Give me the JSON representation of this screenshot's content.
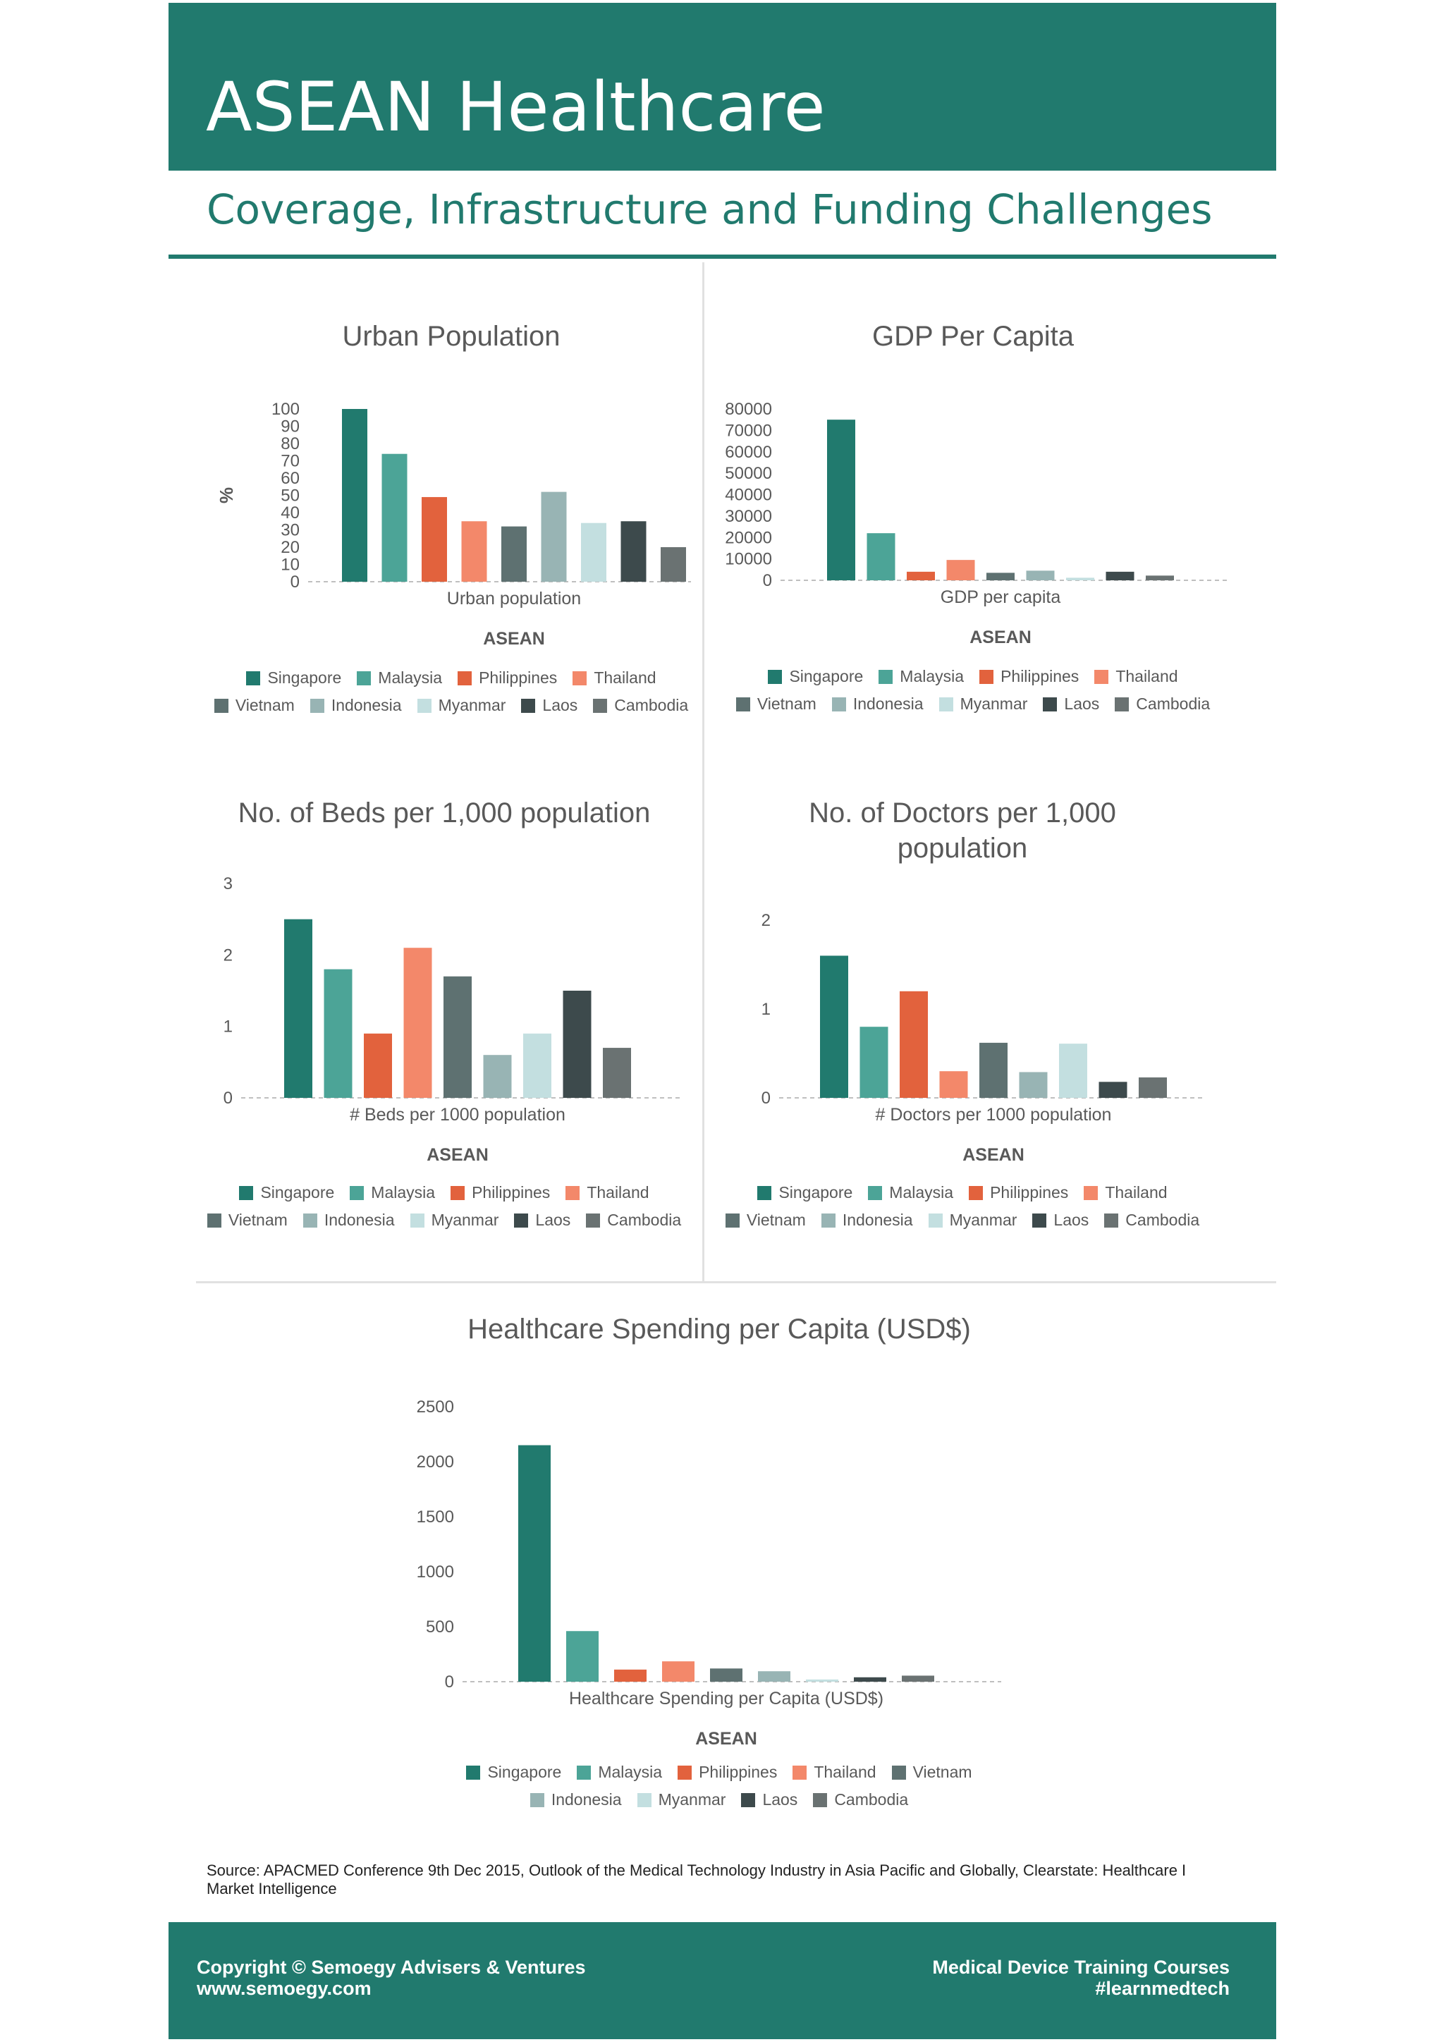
{
  "header": {
    "title": "ASEAN Healthcare",
    "subtitle": "Coverage, Infrastructure and Funding Challenges"
  },
  "colors": {
    "brand": "#217a6e",
    "series": {
      "Singapore": "#217a6e",
      "Malaysia": "#4ca497",
      "Philippines": "#e2623d",
      "Thailand": "#f3886a",
      "Vietnam": "#5e7171",
      "Indonesia": "#98b4b4",
      "Myanmar": "#c3dfe0",
      "Laos": "#3d4a4c",
      "Cambodia": "#6a7272"
    }
  },
  "chart_data": [
    {
      "type": "bar",
      "title": "Urban Population",
      "ylabel": "%",
      "categories": [
        "Urban population"
      ],
      "group_label": "ASEAN",
      "ylim": [
        0,
        100
      ],
      "yticks": [
        "0",
        "10",
        "20",
        "30",
        "40",
        "50",
        "60",
        "70",
        "80",
        "90",
        "100"
      ],
      "series": [
        {
          "name": "Singapore",
          "values": [
            100
          ]
        },
        {
          "name": "Malaysia",
          "values": [
            74
          ]
        },
        {
          "name": "Philippines",
          "values": [
            49
          ]
        },
        {
          "name": "Thailand",
          "values": [
            35
          ]
        },
        {
          "name": "Vietnam",
          "values": [
            32
          ]
        },
        {
          "name": "Indonesia",
          "values": [
            52
          ]
        },
        {
          "name": "Myanmar",
          "values": [
            34
          ]
        },
        {
          "name": "Laos",
          "values": [
            35
          ]
        },
        {
          "name": "Cambodia",
          "values": [
            20
          ]
        }
      ],
      "legend": {
        "placement": "bottom",
        "rows": [
          [
            "Singapore",
            "Malaysia",
            "Philippines",
            "Thailand"
          ],
          [
            "Vietnam",
            "Indonesia",
            "Myanmar",
            "Laos",
            "Cambodia"
          ]
        ]
      }
    },
    {
      "type": "bar",
      "title": "GDP Per Capita",
      "categories": [
        "GDP per capita"
      ],
      "group_label": "ASEAN",
      "ylim": [
        0,
        80000
      ],
      "yticks": [
        "0",
        "10000",
        "20000",
        "30000",
        "40000",
        "50000",
        "60000",
        "70000",
        "80000"
      ],
      "series": [
        {
          "name": "Singapore",
          "values": [
            75000
          ]
        },
        {
          "name": "Malaysia",
          "values": [
            22000
          ]
        },
        {
          "name": "Philippines",
          "values": [
            4000
          ]
        },
        {
          "name": "Thailand",
          "values": [
            9500
          ]
        },
        {
          "name": "Vietnam",
          "values": [
            3500
          ]
        },
        {
          "name": "Indonesia",
          "values": [
            4500
          ]
        },
        {
          "name": "Myanmar",
          "values": [
            1200
          ]
        },
        {
          "name": "Laos",
          "values": [
            4000
          ]
        },
        {
          "name": "Cambodia",
          "values": [
            2200
          ]
        }
      ],
      "legend": {
        "placement": "bottom",
        "rows": [
          [
            "Singapore",
            "Malaysia",
            "Philippines",
            "Thailand"
          ],
          [
            "Vietnam",
            "Indonesia",
            "Myanmar",
            "Laos",
            "Cambodia"
          ]
        ]
      }
    },
    {
      "type": "bar",
      "title": "No. of Beds per 1,000 population",
      "categories": [
        "# Beds per 1000 population"
      ],
      "group_label": "ASEAN",
      "ylim": [
        0,
        3
      ],
      "yticks": [
        "0",
        "1",
        "2",
        "3"
      ],
      "series": [
        {
          "name": "Singapore",
          "values": [
            2.5
          ]
        },
        {
          "name": "Malaysia",
          "values": [
            1.8
          ]
        },
        {
          "name": "Philippines",
          "values": [
            0.9
          ]
        },
        {
          "name": "Thailand",
          "values": [
            2.1
          ]
        },
        {
          "name": "Vietnam",
          "values": [
            1.7
          ]
        },
        {
          "name": "Indonesia",
          "values": [
            0.6
          ]
        },
        {
          "name": "Myanmar",
          "values": [
            0.9
          ]
        },
        {
          "name": "Laos",
          "values": [
            1.5
          ]
        },
        {
          "name": "Cambodia",
          "values": [
            0.7
          ]
        }
      ],
      "legend": {
        "placement": "bottom",
        "rows": [
          [
            "Singapore",
            "Malaysia",
            "Philippines",
            "Thailand"
          ],
          [
            "Vietnam",
            "Indonesia",
            "Myanmar",
            "Laos",
            "Cambodia"
          ]
        ]
      }
    },
    {
      "type": "bar",
      "title": "No. of Doctors per 1,000 population",
      "categories": [
        "# Doctors per 1000 population"
      ],
      "group_label": "ASEAN",
      "ylim": [
        0,
        2
      ],
      "yticks": [
        "0",
        "1",
        "2"
      ],
      "series": [
        {
          "name": "Singapore",
          "values": [
            1.6
          ]
        },
        {
          "name": "Malaysia",
          "values": [
            0.8
          ]
        },
        {
          "name": "Philippines",
          "values": [
            1.2
          ]
        },
        {
          "name": "Thailand",
          "values": [
            0.3
          ]
        },
        {
          "name": "Vietnam",
          "values": [
            0.62
          ]
        },
        {
          "name": "Indonesia",
          "values": [
            0.29
          ]
        },
        {
          "name": "Myanmar",
          "values": [
            0.61
          ]
        },
        {
          "name": "Laos",
          "values": [
            0.18
          ]
        },
        {
          "name": "Cambodia",
          "values": [
            0.23
          ]
        }
      ],
      "legend": {
        "placement": "bottom",
        "rows": [
          [
            "Singapore",
            "Malaysia",
            "Philippines",
            "Thailand"
          ],
          [
            "Vietnam",
            "Indonesia",
            "Myanmar",
            "Laos",
            "Cambodia"
          ]
        ]
      }
    },
    {
      "type": "bar",
      "title": "Healthcare Spending per Capita (USD$)",
      "categories": [
        "Healthcare Spending per Capita (USD$)"
      ],
      "group_label": "ASEAN",
      "ylim": [
        0,
        2500
      ],
      "yticks": [
        "0",
        "500",
        "1000",
        "1500",
        "2000",
        "2500"
      ],
      "series": [
        {
          "name": "Singapore",
          "values": [
            2150
          ]
        },
        {
          "name": "Malaysia",
          "values": [
            460
          ]
        },
        {
          "name": "Philippines",
          "values": [
            110
          ]
        },
        {
          "name": "Thailand",
          "values": [
            185
          ]
        },
        {
          "name": "Vietnam",
          "values": [
            120
          ]
        },
        {
          "name": "Indonesia",
          "values": [
            95
          ]
        },
        {
          "name": "Myanmar",
          "values": [
            20
          ]
        },
        {
          "name": "Laos",
          "values": [
            40
          ]
        },
        {
          "name": "Cambodia",
          "values": [
            55
          ]
        }
      ],
      "legend": {
        "placement": "bottom",
        "rows": [
          [
            "Singapore",
            "Malaysia",
            "Philippines",
            "Thailand",
            "Vietnam"
          ],
          [
            "Indonesia",
            "Myanmar",
            "Laos",
            "Cambodia"
          ]
        ]
      }
    }
  ],
  "source": "Source: APACMED Conference 9th Dec 2015, Outlook of the Medical Technology Industry in Asia Pacific and Globally, Clearstate: Healthcare I Market Intelligence",
  "footer": {
    "left_line1": "Copyright © Semoegy Advisers & Ventures",
    "left_line2": "www.semoegy.com",
    "right_line1": "Medical Device Training Courses",
    "right_line2": "#learnmedtech"
  }
}
